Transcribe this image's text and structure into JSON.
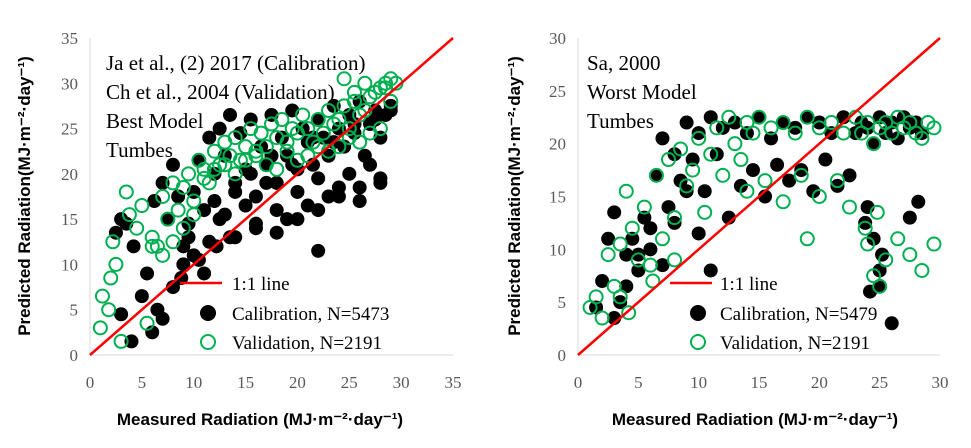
{
  "chart_data": [
    {
      "type": "scatter",
      "panel": "left",
      "annotations": [
        "Ja et al., (2) 2017 (Calibration)",
        "Ch et al., 2004 (Validation)",
        "Best Model",
        "Tumbes"
      ],
      "xlabel": "Measured Radiation (MJ·m⁻²·day⁻¹)",
      "ylabel": "Predicted Radiation(MJ·m⁻²·day⁻¹)",
      "xlim": [
        0,
        35
      ],
      "ylim": [
        0,
        35
      ],
      "xticks": [
        0,
        5,
        10,
        15,
        20,
        25,
        30,
        35
      ],
      "yticks": [
        0,
        5,
        10,
        15,
        20,
        25,
        30,
        35
      ],
      "legend": [
        "1:1 line",
        "Calibration, N=5473",
        "Validation, N=2191"
      ],
      "legend_position": "bottom-right",
      "series": [
        {
          "name": "Calibration, N=5473",
          "color": "#000000",
          "x": [
            3.0,
            3.5,
            4.2,
            5.0,
            5.5,
            6.2,
            7.0,
            7.5,
            8.0,
            8.5,
            9.0,
            9.5,
            10.0,
            10.5,
            11.0,
            11.5,
            12.0,
            12.5,
            13.0,
            13.5,
            14.0,
            14.5,
            15.0,
            15.5,
            16.0,
            16.5,
            17.0,
            17.5,
            18.0,
            18.5,
            19.0,
            19.5,
            20.0,
            20.5,
            21.0,
            21.5,
            22.0,
            22.5,
            23.0,
            23.5,
            24.0,
            24.5,
            25.0,
            25.5,
            26.0,
            26.5,
            27.0,
            27.5,
            28.0,
            28.5,
            29.0,
            12.0,
            13.0,
            14.0,
            15.0,
            16.0,
            17.0,
            18.0,
            19.0,
            20.0,
            21.0,
            22.0,
            23.0,
            24.0,
            25.0,
            26.0,
            27.0,
            28.0,
            9.5,
            10.5,
            11.5,
            12.5,
            13.5,
            7.0,
            8.0,
            9.0,
            10.0,
            11.0,
            14.0,
            16.0,
            18.0,
            20.0,
            22.0,
            24.0,
            26.0,
            28.0,
            3.0,
            4.0,
            2.5,
            6.0,
            6.5,
            8.8,
            12.2,
            22.0,
            15.5,
            17.5,
            19.5,
            21.5,
            23.5,
            25.5,
            27.5,
            29.0
          ],
          "y": [
            15.0,
            14.5,
            12.0,
            6.5,
            9.0,
            17.0,
            19.0,
            15.0,
            21.0,
            17.5,
            12.0,
            14.5,
            18.0,
            21.5,
            16.0,
            24.0,
            20.0,
            25.0,
            22.0,
            26.5,
            19.0,
            24.5,
            20.5,
            26.0,
            17.5,
            23.0,
            21.0,
            26.5,
            19.0,
            24.0,
            22.0,
            27.0,
            20.5,
            25.0,
            23.5,
            21.0,
            26.0,
            24.0,
            22.0,
            27.5,
            25.0,
            23.0,
            26.5,
            24.5,
            28.0,
            22.0,
            25.5,
            27.0,
            24.0,
            26.5,
            27.5,
            17.0,
            15.5,
            18.0,
            16.5,
            14.5,
            19.0,
            16.0,
            15.0,
            18.0,
            16.5,
            19.5,
            17.5,
            18.5,
            20.0,
            17.0,
            21.0,
            19.0,
            13.0,
            10.5,
            12.5,
            15.0,
            13.0,
            4.0,
            7.5,
            10.0,
            11.0,
            9.0,
            13.0,
            14.0,
            13.5,
            15.0,
            16.0,
            17.5,
            18.5,
            19.5,
            4.5,
            1.5,
            13.5,
            2.5,
            5.0,
            8.5,
            12.0,
            11.5,
            20.0,
            22.0,
            21.0,
            24.0,
            23.5,
            25.5,
            26.0,
            27.0
          ]
        },
        {
          "name": "Validation, N=2191",
          "color": "#00b050",
          "x": [
            1.0,
            1.2,
            1.8,
            2.0,
            2.2,
            2.5,
            3.0,
            3.5,
            3.8,
            4.5,
            5.0,
            5.5,
            6.0,
            6.5,
            7.0,
            7.5,
            8.0,
            8.5,
            9.0,
            9.5,
            10.0,
            10.5,
            11.0,
            11.5,
            12.0,
            12.5,
            13.0,
            13.5,
            14.0,
            14.5,
            15.0,
            15.5,
            16.0,
            16.5,
            17.0,
            17.5,
            18.0,
            18.5,
            19.0,
            19.5,
            20.0,
            20.5,
            21.0,
            21.5,
            22.0,
            22.5,
            23.0,
            23.5,
            24.0,
            24.5,
            25.0,
            25.5,
            26.0,
            26.5,
            27.0,
            27.5,
            28.0,
            28.5,
            29.0,
            29.5,
            11.0,
            12.0,
            13.0,
            14.0,
            15.0,
            16.0,
            17.0,
            18.0,
            19.0,
            20.0,
            21.0,
            22.0,
            23.0,
            24.0,
            25.0,
            26.0,
            27.0,
            28.0,
            10.0,
            9.0,
            8.0,
            7.0,
            6.0,
            29.0,
            28.5,
            24.5,
            25.5,
            26.5
          ],
          "y": [
            3.0,
            6.5,
            5.0,
            8.5,
            12.5,
            10.0,
            1.5,
            18.0,
            15.5,
            14.0,
            16.5,
            3.5,
            13.0,
            12.0,
            17.5,
            15.0,
            19.0,
            16.0,
            18.5,
            20.0,
            17.0,
            21.5,
            20.5,
            19.0,
            22.5,
            21.0,
            23.5,
            22.0,
            24.0,
            21.5,
            23.0,
            25.0,
            22.5,
            24.5,
            23.0,
            25.5,
            24.0,
            26.0,
            23.5,
            25.0,
            24.5,
            26.5,
            25.0,
            23.5,
            26.0,
            24.5,
            27.0,
            25.5,
            26.0,
            27.5,
            25.0,
            28.0,
            26.5,
            27.0,
            28.5,
            29.0,
            29.5,
            30.0,
            30.5,
            30.0,
            19.5,
            20.5,
            21.0,
            20.0,
            21.5,
            22.0,
            21.0,
            20.5,
            22.5,
            21.5,
            22.0,
            23.0,
            22.5,
            23.0,
            24.0,
            23.5,
            24.5,
            25.0,
            15.5,
            14.0,
            12.5,
            11.0,
            12.0,
            28.0,
            29.5,
            30.5,
            29.0,
            30.0
          ]
        }
      ]
    },
    {
      "type": "scatter",
      "panel": "right",
      "annotations": [
        "Sa, 2000",
        "Worst Model",
        "Tumbes"
      ],
      "xlabel": "Measured Radiation (MJ·m⁻²·day⁻¹)",
      "ylabel": "Predicted Radiation(MJ·m⁻²·day⁻¹)",
      "xlim": [
        0,
        30
      ],
      "ylim": [
        0,
        30
      ],
      "xticks": [
        0,
        5,
        10,
        15,
        20,
        25,
        30
      ],
      "yticks": [
        0,
        5,
        10,
        15,
        20,
        25,
        30
      ],
      "legend": [
        "1:1 line",
        "Calibration, N=5479",
        "Validation, N=2191"
      ],
      "legend_position": "bottom-right",
      "series": [
        {
          "name": "Calibration, N=5479",
          "color": "#000000",
          "x": [
            1.5,
            2.0,
            2.5,
            3.0,
            3.5,
            4.0,
            4.5,
            5.0,
            5.5,
            6.0,
            6.5,
            7.0,
            7.5,
            8.0,
            8.5,
            9.0,
            9.5,
            10.0,
            10.5,
            11.0,
            11.5,
            12.0,
            13.0,
            14.0,
            15.0,
            16.0,
            17.0,
            18.0,
            19.0,
            20.0,
            21.0,
            22.0,
            23.0,
            23.5,
            24.0,
            24.5,
            25.0,
            25.5,
            26.0,
            26.5,
            27.0,
            27.5,
            28.0,
            28.5,
            13.5,
            14.5,
            15.5,
            16.5,
            17.5,
            18.5,
            19.5,
            20.5,
            21.5,
            22.5,
            24.0,
            24.5,
            25.0,
            24.2,
            25.2,
            23.8,
            11.0,
            12.5,
            7.0,
            8.0,
            9.0,
            10.0,
            3.0,
            4.0,
            5.0,
            6.0,
            27.5,
            28.2,
            26.0,
            25.0
          ],
          "y": [
            4.5,
            7.0,
            11.0,
            13.5,
            5.0,
            9.5,
            11.0,
            8.0,
            13.0,
            10.0,
            17.0,
            20.5,
            14.0,
            19.0,
            16.5,
            22.0,
            18.5,
            21.0,
            15.5,
            22.5,
            19.0,
            21.5,
            22.0,
            21.0,
            22.5,
            20.5,
            22.0,
            21.5,
            22.5,
            22.0,
            21.0,
            22.5,
            21.0,
            22.0,
            21.5,
            20.0,
            22.5,
            21.0,
            22.0,
            20.5,
            22.5,
            21.5,
            22.0,
            21.0,
            16.0,
            17.5,
            15.0,
            18.0,
            16.5,
            17.5,
            15.5,
            18.5,
            16.0,
            17.0,
            14.0,
            11.0,
            8.0,
            6.0,
            9.5,
            12.5,
            8.0,
            13.0,
            8.5,
            12.5,
            15.5,
            11.5,
            3.5,
            6.5,
            9.5,
            12.0,
            13.0,
            14.5,
            3.0,
            6.5
          ]
        },
        {
          "name": "Validation, N=2191",
          "color": "#00b050",
          "x": [
            1.0,
            1.5,
            2.0,
            2.5,
            3.0,
            3.5,
            4.0,
            4.5,
            5.0,
            5.5,
            6.0,
            6.5,
            7.0,
            7.5,
            8.0,
            8.5,
            9.0,
            9.5,
            10.0,
            10.5,
            11.0,
            11.5,
            12.0,
            12.5,
            13.0,
            13.5,
            14.0,
            14.5,
            15.0,
            16.0,
            17.0,
            18.0,
            19.0,
            20.0,
            21.0,
            22.0,
            23.0,
            23.5,
            24.0,
            24.5,
            25.0,
            25.5,
            26.0,
            26.5,
            27.0,
            27.5,
            28.0,
            28.5,
            29.0,
            29.5,
            14.0,
            15.5,
            17.0,
            18.5,
            20.0,
            21.5,
            22.5,
            24.0,
            24.5,
            25.0,
            25.5,
            23.8,
            24.8,
            26.5,
            27.5,
            28.5,
            29.5,
            19.0,
            3.5,
            4.2,
            6.2,
            8.0
          ],
          "y": [
            4.5,
            5.5,
            3.5,
            9.5,
            6.5,
            10.5,
            15.5,
            12.0,
            9.0,
            14.0,
            8.5,
            17.0,
            11.0,
            18.5,
            13.0,
            19.5,
            16.0,
            17.5,
            20.5,
            13.5,
            19.0,
            21.5,
            17.0,
            22.5,
            20.0,
            18.5,
            22.0,
            21.0,
            22.5,
            21.5,
            22.0,
            21.0,
            22.5,
            21.5,
            22.0,
            21.0,
            22.5,
            21.0,
            22.0,
            20.0,
            21.5,
            22.0,
            21.0,
            22.5,
            21.5,
            22.0,
            21.0,
            20.5,
            22.0,
            21.5,
            15.5,
            16.5,
            14.5,
            17.0,
            15.0,
            16.5,
            14.0,
            10.5,
            7.5,
            6.5,
            9.0,
            12.0,
            13.5,
            11.0,
            9.5,
            8.0,
            10.5,
            11.0,
            5.5,
            4.0,
            7.0,
            9.0
          ]
        }
      ]
    }
  ]
}
